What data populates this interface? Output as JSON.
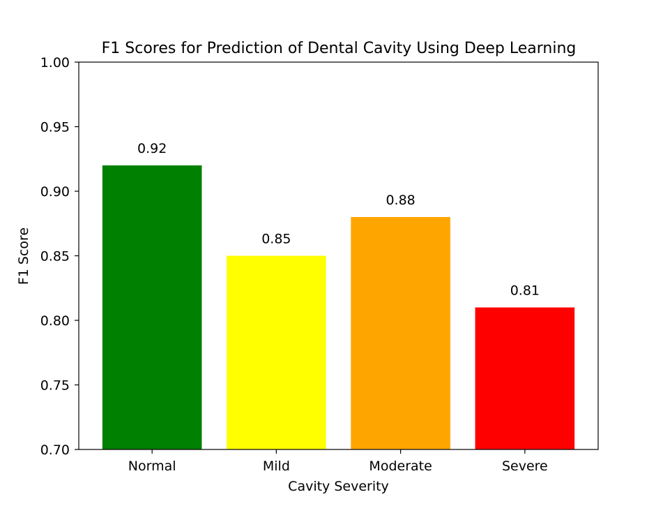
{
  "chart_data": {
    "type": "bar",
    "title": "F1 Scores for Prediction of Dental Cavity Using Deep Learning",
    "xlabel": "Cavity Severity",
    "ylabel": "F1 Score",
    "categories": [
      "Normal",
      "Mild",
      "Moderate",
      "Severe"
    ],
    "values": [
      0.92,
      0.85,
      0.88,
      0.81
    ],
    "value_labels": [
      "0.92",
      "0.85",
      "0.88",
      "0.81"
    ],
    "colors": [
      "#008000",
      "#ffff00",
      "#ffa500",
      "#ff0000"
    ],
    "ylim": [
      0.7,
      1.0
    ],
    "yticks": [
      0.7,
      0.75,
      0.8,
      0.85,
      0.9,
      0.95,
      1.0
    ],
    "ytick_labels": [
      "0.70",
      "0.75",
      "0.80",
      "0.85",
      "0.90",
      "0.95",
      "1.00"
    ],
    "grid": false,
    "legend": "none"
  }
}
